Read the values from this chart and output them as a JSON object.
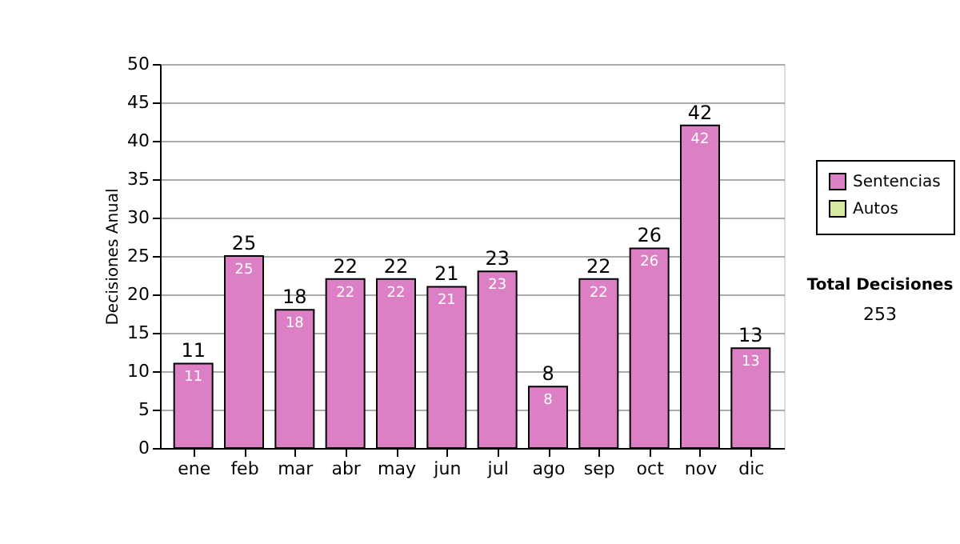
{
  "chart_data": {
    "type": "bar",
    "ylabel": "Decisiones Anual",
    "categories": [
      "ene",
      "feb",
      "mar",
      "abr",
      "may",
      "jun",
      "jul",
      "ago",
      "sep",
      "oct",
      "nov",
      "dic"
    ],
    "series": [
      {
        "name": "Sentencias",
        "color": "#dd7fc4",
        "values": [
          11,
          25,
          18,
          22,
          22,
          21,
          23,
          8,
          22,
          26,
          42,
          13
        ]
      },
      {
        "name": "Autos",
        "color": "#d6e9a2",
        "values": [
          null,
          null,
          null,
          null,
          null,
          null,
          null,
          null,
          null,
          null,
          null,
          null
        ]
      }
    ],
    "stacked": true,
    "data_labels": true,
    "totals": [
      "11",
      "25",
      "18",
      "22",
      "22",
      "21",
      "23",
      "8",
      "22",
      "26",
      "42",
      "13"
    ],
    "ylim": [
      0,
      50
    ],
    "yticks": [
      0,
      5,
      10,
      15,
      20,
      25,
      30,
      35,
      40,
      45,
      50
    ],
    "grid": "y",
    "legend": "right",
    "annotations": [
      "Total Decisiones",
      "253"
    ]
  }
}
